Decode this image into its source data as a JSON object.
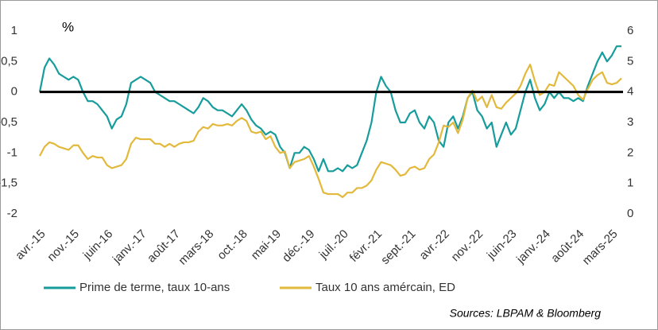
{
  "chart_data": {
    "type": "line",
    "annotation": "%",
    "source": "Sources: LBPAM & Bloomberg",
    "categories": [
      "avr.-15",
      null,
      null,
      null,
      null,
      null,
      null,
      "nov.-15",
      null,
      null,
      null,
      null,
      null,
      null,
      "juin-16",
      null,
      null,
      null,
      null,
      null,
      null,
      "janv.-17",
      null,
      null,
      null,
      null,
      null,
      null,
      "août-17",
      null,
      null,
      null,
      null,
      null,
      null,
      "mars-18",
      null,
      null,
      null,
      null,
      null,
      null,
      "oct.-18",
      null,
      null,
      null,
      null,
      null,
      null,
      "mai-19",
      null,
      null,
      null,
      null,
      null,
      null,
      "déc.-19",
      null,
      null,
      null,
      null,
      null,
      null,
      "juil.-20",
      null,
      null,
      null,
      null,
      null,
      null,
      "févr.-21",
      null,
      null,
      null,
      null,
      null,
      null,
      "sept.-21",
      null,
      null,
      null,
      null,
      null,
      null,
      "avr.-22",
      null,
      null,
      null,
      null,
      null,
      null,
      "nov.-22",
      null,
      null,
      null,
      null,
      null,
      null,
      "juin-23",
      null,
      null,
      null,
      null,
      null,
      null,
      "janv.-24",
      null,
      null,
      null,
      null,
      null,
      null,
      "août-24",
      null,
      null,
      null,
      null,
      null,
      null,
      "mars-25",
      null,
      null
    ],
    "series": [
      {
        "name": "Prime de terme, taux 10-ans",
        "color": "#179c9c",
        "axis": "y",
        "values": [
          0.0,
          0.4,
          0.55,
          0.45,
          0.3,
          0.25,
          0.2,
          0.25,
          0.2,
          0.0,
          -0.15,
          -0.15,
          -0.2,
          -0.3,
          -0.4,
          -0.6,
          -0.45,
          -0.4,
          -0.2,
          0.15,
          0.2,
          0.25,
          0.2,
          0.15,
          0.0,
          -0.05,
          -0.1,
          -0.15,
          -0.15,
          -0.2,
          -0.25,
          -0.3,
          -0.35,
          -0.25,
          -0.1,
          -0.15,
          -0.25,
          -0.3,
          -0.3,
          -0.35,
          -0.4,
          -0.3,
          -0.2,
          -0.3,
          -0.45,
          -0.55,
          -0.6,
          -0.7,
          -0.65,
          -0.7,
          -0.9,
          -1.0,
          -1.25,
          -1.0,
          -1.0,
          -0.9,
          -0.95,
          -1.1,
          -1.3,
          -1.1,
          -1.3,
          -1.3,
          -1.25,
          -1.3,
          -1.2,
          -1.25,
          -1.2,
          -1.0,
          -0.8,
          -0.5,
          0.0,
          0.25,
          0.1,
          0.0,
          -0.3,
          -0.5,
          -0.5,
          -0.35,
          -0.3,
          -0.5,
          -0.6,
          -0.4,
          -0.5,
          -0.8,
          -0.9,
          -0.5,
          -0.4,
          -0.6,
          -0.4,
          -0.1,
          0.0,
          -0.3,
          -0.4,
          -0.6,
          -0.5,
          -0.9,
          -0.7,
          -0.5,
          -0.7,
          -0.6,
          -0.3,
          0.0,
          0.2,
          -0.1,
          -0.3,
          -0.2,
          0.0,
          -0.1,
          0.0,
          -0.1,
          -0.1,
          -0.15,
          -0.1,
          -0.15,
          0.1,
          0.3,
          0.5,
          0.65,
          0.5,
          0.6,
          0.75,
          0.75
        ]
      },
      {
        "name": "Taux 10 ans amércain, ED",
        "color": "#e2b93b",
        "axis": "y2",
        "values": [
          1.9,
          2.2,
          2.35,
          2.3,
          2.2,
          2.15,
          2.1,
          2.25,
          2.25,
          2.0,
          1.8,
          1.9,
          1.85,
          1.85,
          1.6,
          1.5,
          1.55,
          1.6,
          1.8,
          2.3,
          2.5,
          2.45,
          2.45,
          2.45,
          2.3,
          2.3,
          2.2,
          2.3,
          2.2,
          2.3,
          2.35,
          2.35,
          2.4,
          2.7,
          2.85,
          2.8,
          2.95,
          2.9,
          2.9,
          2.95,
          2.9,
          3.05,
          3.15,
          3.05,
          2.7,
          2.65,
          2.7,
          2.45,
          2.55,
          2.2,
          2.0,
          2.05,
          1.5,
          1.7,
          1.75,
          1.8,
          1.9,
          1.55,
          1.15,
          0.7,
          0.65,
          0.65,
          0.65,
          0.55,
          0.7,
          0.7,
          0.85,
          0.85,
          0.93,
          1.1,
          1.45,
          1.7,
          1.65,
          1.6,
          1.45,
          1.25,
          1.3,
          1.5,
          1.55,
          1.45,
          1.5,
          1.8,
          1.95,
          2.35,
          2.9,
          2.85,
          3.0,
          2.65,
          3.1,
          3.8,
          4.05,
          3.7,
          3.85,
          3.5,
          3.9,
          3.5,
          3.45,
          3.65,
          3.8,
          3.95,
          4.2,
          4.6,
          4.9,
          4.35,
          3.9,
          4.0,
          4.25,
          4.2,
          4.65,
          4.5,
          4.35,
          4.2,
          3.9,
          3.75,
          4.1,
          4.4,
          4.55,
          4.65,
          4.3,
          4.25,
          4.3,
          4.45
        ]
      }
    ],
    "ylim": [
      -2,
      1
    ],
    "yticks": [
      {
        "value": -2,
        "label": "-2"
      },
      {
        "value": -1.5,
        "label": "-1,5"
      },
      -1,
      {
        "value": -0.5,
        "label": "-0,5"
      },
      0,
      {
        "value": 0.5,
        "label": "0,5"
      },
      1
    ],
    "y2lim": [
      0,
      6
    ],
    "y2ticks": [
      0,
      1,
      2,
      3,
      4,
      5,
      6
    ],
    "zero_line": true,
    "legend": "bottom"
  }
}
